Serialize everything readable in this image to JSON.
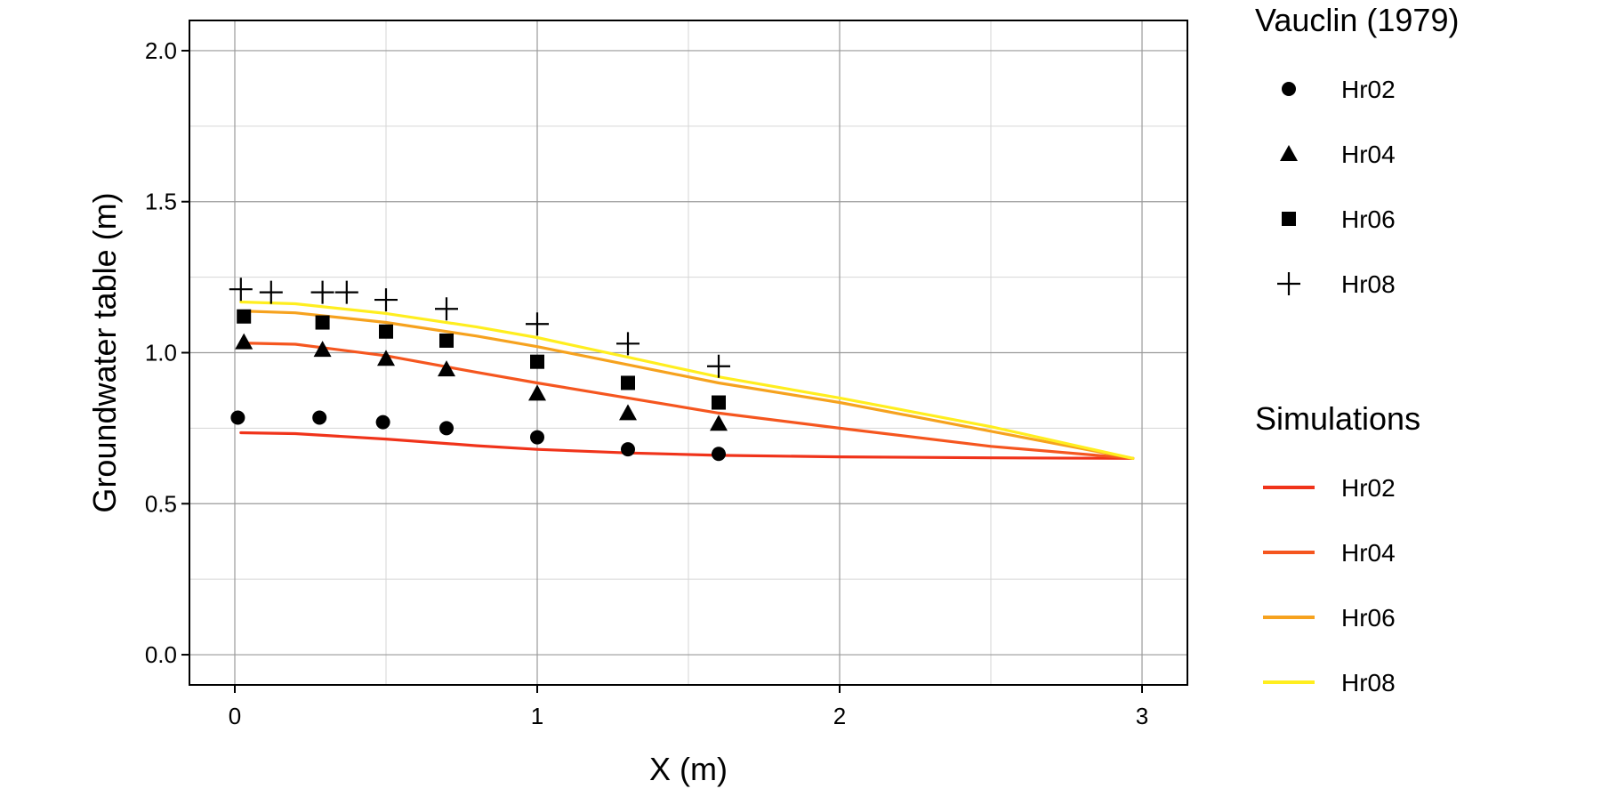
{
  "chart_data": {
    "type": "line",
    "xlabel": "X (m)",
    "ylabel": "Groundwater table (m)",
    "xlim": [
      -0.15,
      3.15
    ],
    "ylim": [
      -0.1,
      2.1
    ],
    "xticks": [
      0,
      1,
      2,
      3
    ],
    "xtick_labels": [
      "0",
      "1",
      "2",
      "3"
    ],
    "yticks": [
      0.0,
      0.5,
      1.0,
      1.5,
      2.0
    ],
    "ytick_labels": [
      "0.0",
      "0.5",
      "1.0",
      "1.5",
      "2.0"
    ],
    "x_minor_gridlines": [
      0.5,
      1.5,
      2.5
    ],
    "y_minor_gridlines": [
      0.25,
      0.75,
      1.25,
      1.75
    ],
    "grid": true,
    "legend_placement": "right",
    "observations": {
      "legend_title": "Vauclin (1979)",
      "series": [
        {
          "name": "Hr02",
          "marker": "circle",
          "points": [
            [
              0.01,
              0.785
            ],
            [
              0.28,
              0.785
            ],
            [
              0.49,
              0.77
            ],
            [
              0.7,
              0.75
            ],
            [
              1.0,
              0.72
            ],
            [
              1.3,
              0.68
            ],
            [
              1.6,
              0.665
            ]
          ]
        },
        {
          "name": "Hr04",
          "marker": "triangle",
          "points": [
            [
              0.03,
              1.035
            ],
            [
              0.29,
              1.01
            ],
            [
              0.5,
              0.98
            ],
            [
              0.7,
              0.945
            ],
            [
              1.0,
              0.865
            ],
            [
              1.3,
              0.8
            ],
            [
              1.6,
              0.765
            ]
          ]
        },
        {
          "name": "Hr06",
          "marker": "square",
          "points": [
            [
              0.03,
              1.12
            ],
            [
              0.29,
              1.1
            ],
            [
              0.5,
              1.07
            ],
            [
              0.7,
              1.04
            ],
            [
              1.0,
              0.97
            ],
            [
              1.3,
              0.9
            ],
            [
              1.6,
              0.835
            ]
          ]
        },
        {
          "name": "Hr08",
          "marker": "plus",
          "points": [
            [
              0.02,
              1.21
            ],
            [
              0.12,
              1.2
            ],
            [
              0.29,
              1.2
            ],
            [
              0.37,
              1.2
            ],
            [
              0.5,
              1.175
            ],
            [
              0.7,
              1.145
            ],
            [
              1.0,
              1.095
            ],
            [
              1.3,
              1.03
            ],
            [
              1.6,
              0.955
            ]
          ]
        }
      ]
    },
    "simulations": {
      "legend_title": "Simulations",
      "series": [
        {
          "name": "Hr02",
          "color": "#f0331a",
          "points": [
            [
              0.02,
              0.735
            ],
            [
              0.2,
              0.732
            ],
            [
              0.5,
              0.714
            ],
            [
              0.8,
              0.692
            ],
            [
              1.0,
              0.68
            ],
            [
              1.3,
              0.668
            ],
            [
              1.6,
              0.66
            ],
            [
              2.0,
              0.655
            ],
            [
              2.5,
              0.652
            ],
            [
              2.97,
              0.65
            ]
          ]
        },
        {
          "name": "Hr04",
          "color": "#f5561f",
          "points": [
            [
              0.02,
              1.032
            ],
            [
              0.2,
              1.028
            ],
            [
              0.5,
              0.99
            ],
            [
              0.8,
              0.935
            ],
            [
              1.0,
              0.9
            ],
            [
              1.3,
              0.85
            ],
            [
              1.6,
              0.8
            ],
            [
              2.0,
              0.75
            ],
            [
              2.5,
              0.69
            ],
            [
              2.97,
              0.65
            ]
          ]
        },
        {
          "name": "Hr06",
          "color": "#f6a21e",
          "points": [
            [
              0.02,
              1.138
            ],
            [
              0.2,
              1.132
            ],
            [
              0.5,
              1.1
            ],
            [
              0.8,
              1.055
            ],
            [
              1.0,
              1.02
            ],
            [
              1.3,
              0.96
            ],
            [
              1.6,
              0.9
            ],
            [
              2.0,
              0.835
            ],
            [
              2.5,
              0.74
            ],
            [
              2.97,
              0.65
            ]
          ]
        },
        {
          "name": "Hr08",
          "color": "#ffee1f",
          "points": [
            [
              0.02,
              1.168
            ],
            [
              0.2,
              1.162
            ],
            [
              0.5,
              1.13
            ],
            [
              0.8,
              1.085
            ],
            [
              1.0,
              1.05
            ],
            [
              1.3,
              0.985
            ],
            [
              1.6,
              0.92
            ],
            [
              2.0,
              0.85
            ],
            [
              2.5,
              0.755
            ],
            [
              2.97,
              0.65
            ]
          ]
        }
      ]
    }
  }
}
